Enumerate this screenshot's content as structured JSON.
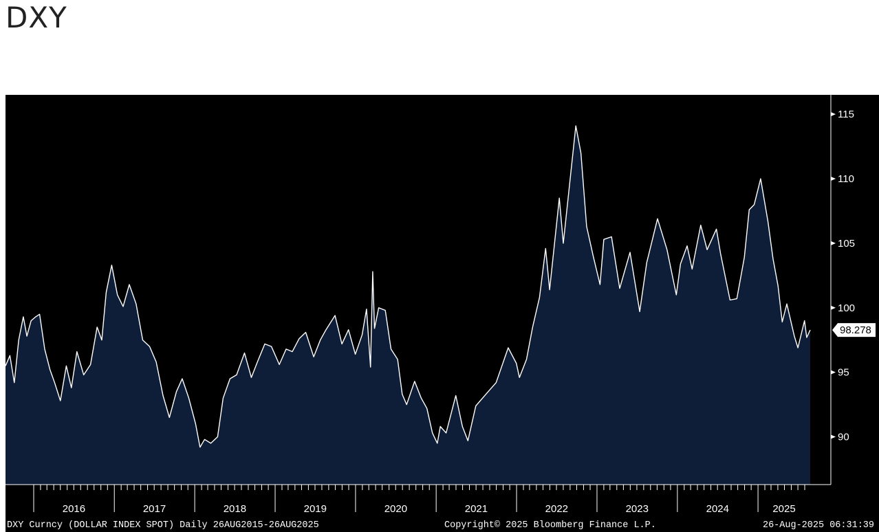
{
  "page": {
    "title": "DXY"
  },
  "footer": {
    "left": "DXY Curncy (DOLLAR INDEX SPOT)  Daily 26AUG2015-26AUG2025",
    "center": "Copyright© 2025 Bloomberg Finance L.P.",
    "right": "26-Aug-2025 06:31:39"
  },
  "colors": {
    "background": "#000000",
    "area": "#0f1e38",
    "line": "#ffffff",
    "text": "#ffffff"
  },
  "chart_data": {
    "type": "area",
    "title": "DXY",
    "xlabel": "",
    "ylabel": "",
    "ylim": [
      86.3,
      116.5
    ],
    "xlim": [
      "2015-08-26",
      "2025-08-26"
    ],
    "yticks": [
      90,
      95,
      100,
      105,
      110,
      115
    ],
    "year_labels": [
      "2016",
      "2017",
      "2018",
      "2019",
      "2020",
      "2021",
      "2022",
      "2023",
      "2024",
      "2025"
    ],
    "last_value_label": "98.278",
    "grid": false,
    "series": [
      {
        "x": [
          "2015-08-26",
          "2015-09-15",
          "2015-10-05",
          "2015-10-25",
          "2015-11-15",
          "2015-12-01",
          "2015-12-20",
          "2016-01-10",
          "2016-01-28",
          "2016-02-20",
          "2016-03-15",
          "2016-04-05",
          "2016-05-01",
          "2016-05-28",
          "2016-06-20",
          "2016-07-15",
          "2016-08-15",
          "2016-09-15",
          "2016-10-15",
          "2016-11-05",
          "2016-11-25",
          "2016-12-20",
          "2017-01-15",
          "2017-02-10",
          "2017-03-10",
          "2017-04-10",
          "2017-05-10",
          "2017-06-10",
          "2017-07-10",
          "2017-08-10",
          "2017-09-08",
          "2017-10-10",
          "2017-11-05",
          "2017-12-05",
          "2018-01-05",
          "2018-01-25",
          "2018-02-15",
          "2018-03-15",
          "2018-04-15",
          "2018-05-10",
          "2018-06-10",
          "2018-07-10",
          "2018-08-15",
          "2018-09-15",
          "2018-10-15",
          "2018-11-15",
          "2018-12-15",
          "2019-01-20",
          "2019-02-20",
          "2019-03-20",
          "2019-04-20",
          "2019-05-20",
          "2019-06-25",
          "2019-07-25",
          "2019-08-20",
          "2019-09-30",
          "2019-10-31",
          "2019-11-30",
          "2019-12-31",
          "2020-01-31",
          "2020-02-20",
          "2020-03-09",
          "2020-03-19",
          "2020-03-27",
          "2020-04-15",
          "2020-05-15",
          "2020-06-10",
          "2020-07-10",
          "2020-07-31",
          "2020-08-20",
          "2020-09-25",
          "2020-10-25",
          "2020-11-20",
          "2020-12-15",
          "2021-01-06",
          "2021-01-20",
          "2021-02-15",
          "2021-03-31",
          "2021-04-30",
          "2021-05-25",
          "2021-06-30",
          "2021-08-20",
          "2021-09-30",
          "2021-11-24",
          "2021-12-31",
          "2022-01-14",
          "2022-02-15",
          "2022-03-15",
          "2022-04-15",
          "2022-05-13",
          "2022-05-31",
          "2022-07-14",
          "2022-08-01",
          "2022-08-25",
          "2022-09-27",
          "2022-10-20",
          "2022-11-15",
          "2022-12-15",
          "2023-01-15",
          "2023-02-01",
          "2023-03-08",
          "2023-04-14",
          "2023-05-31",
          "2023-07-14",
          "2023-08-15",
          "2023-10-03",
          "2023-11-15",
          "2023-12-27",
          "2024-01-15",
          "2024-02-14",
          "2024-03-08",
          "2024-04-16",
          "2024-05-15",
          "2024-06-26",
          "2024-07-15",
          "2024-08-27",
          "2024-09-27",
          "2024-10-31",
          "2024-11-22",
          "2024-12-15",
          "2025-01-13",
          "2025-02-15",
          "2025-03-10",
          "2025-04-02",
          "2025-04-21",
          "2025-05-12",
          "2025-06-15",
          "2025-07-01",
          "2025-07-31",
          "2025-08-10",
          "2025-08-26"
        ],
        "y": [
          95.5,
          96.3,
          94.2,
          97.5,
          99.3,
          97.8,
          99.0,
          99.3,
          99.5,
          96.8,
          95.2,
          94.2,
          92.8,
          95.5,
          93.8,
          96.6,
          94.8,
          95.6,
          98.5,
          97.5,
          101.2,
          103.3,
          101.0,
          100.1,
          101.8,
          100.3,
          97.5,
          97.0,
          95.8,
          93.2,
          91.5,
          93.5,
          94.5,
          93.0,
          91.0,
          89.2,
          89.8,
          89.5,
          90.0,
          93.0,
          94.5,
          94.8,
          96.5,
          94.6,
          95.9,
          97.2,
          97.0,
          95.6,
          96.8,
          96.6,
          97.6,
          98.1,
          96.2,
          97.5,
          98.3,
          99.4,
          97.2,
          98.3,
          96.4,
          97.9,
          99.9,
          95.4,
          102.8,
          98.4,
          100.0,
          99.8,
          96.8,
          96.0,
          93.3,
          92.5,
          94.3,
          93.0,
          92.2,
          90.3,
          89.5,
          90.8,
          90.3,
          93.2,
          90.8,
          89.7,
          92.4,
          93.4,
          94.2,
          96.9,
          95.7,
          94.6,
          96.0,
          98.5,
          100.8,
          104.6,
          101.4,
          108.5,
          105.0,
          108.8,
          114.1,
          112.0,
          106.3,
          104.0,
          101.8,
          105.3,
          105.5,
          101.5,
          104.3,
          99.7,
          103.5,
          106.9,
          104.5,
          101.0,
          103.4,
          104.8,
          103.0,
          106.4,
          104.5,
          106.1,
          104.2,
          100.6,
          100.7,
          103.9,
          107.6,
          108.0,
          110.0,
          106.7,
          103.8,
          101.7,
          98.9,
          100.3,
          97.8,
          96.9,
          99.0,
          97.7,
          98.278
        ]
      }
    ]
  }
}
